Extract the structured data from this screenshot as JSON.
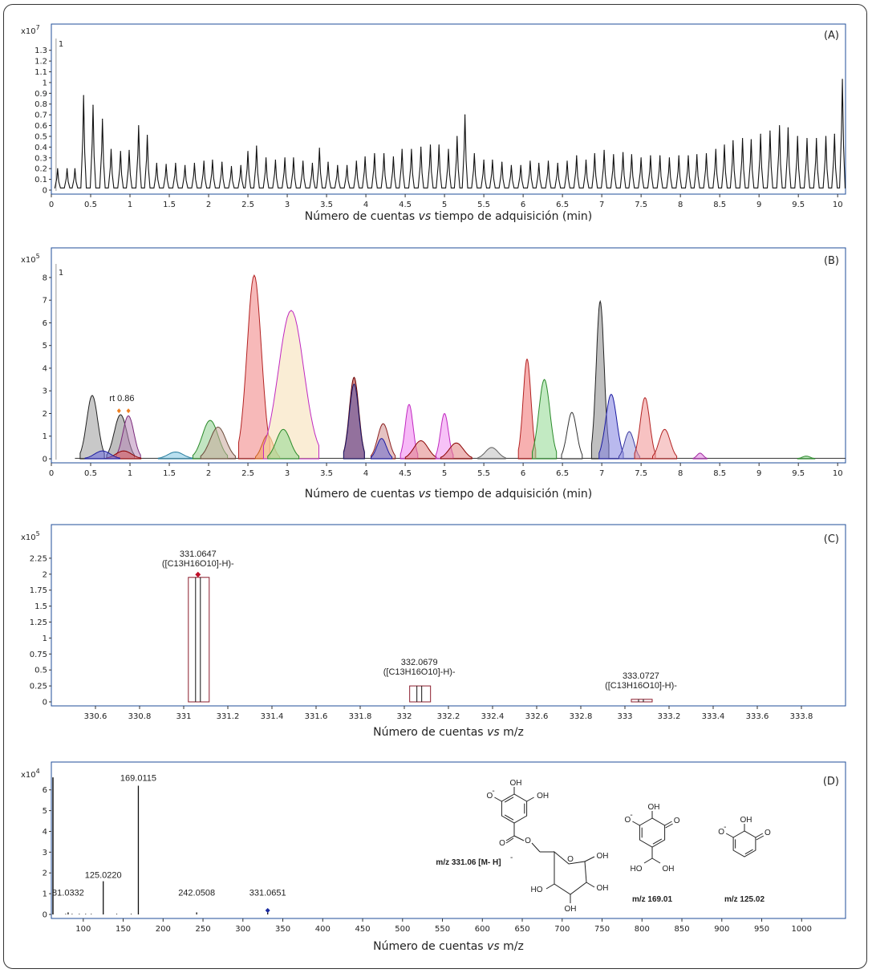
{
  "panel_labels": [
    "(A)",
    "(B)",
    "(C)",
    "(D)"
  ],
  "chart_data": [
    {
      "panel": "(A)",
      "type": "line",
      "y_multiplier": "x10",
      "y_exponent": "7",
      "xlabel_prefix": "Número de cuentas ",
      "xlabel_vs": "vs",
      "xlabel_suffix": " tiempo de adquisición (min)",
      "xlim": [
        0,
        10.1
      ],
      "ylim": [
        0,
        1.35
      ],
      "xticks": [
        "0",
        "0.5",
        "1",
        "1.5",
        "2",
        "2.5",
        "3",
        "3.5",
        "4",
        "4.5",
        "5",
        "5.5",
        "6",
        "6.5",
        "7",
        "7.5",
        "8",
        "8.5",
        "9",
        "9.5",
        "10"
      ],
      "yticks": [
        "0",
        "0.1",
        "0.2",
        "0.3",
        "0.4",
        "0.5",
        "0.6",
        "0.7",
        "0.8",
        "0.9",
        "1",
        "1.1",
        "1.2",
        "1.3"
      ],
      "segment_marker": "1",
      "peaks": [
        [
          0.08,
          0.2
        ],
        [
          0.2,
          0.2
        ],
        [
          0.3,
          0.2
        ],
        [
          0.41,
          0.88
        ],
        [
          0.53,
          0.79
        ],
        [
          0.65,
          0.66
        ],
        [
          0.76,
          0.38
        ],
        [
          0.88,
          0.36
        ],
        [
          0.99,
          0.37
        ],
        [
          1.11,
          0.6
        ],
        [
          1.22,
          0.51
        ],
        [
          1.34,
          0.25
        ],
        [
          1.46,
          0.24
        ],
        [
          1.58,
          0.25
        ],
        [
          1.7,
          0.23
        ],
        [
          1.82,
          0.25
        ],
        [
          1.94,
          0.27
        ],
        [
          2.05,
          0.28
        ],
        [
          2.17,
          0.26
        ],
        [
          2.29,
          0.22
        ],
        [
          2.41,
          0.23
        ],
        [
          2.5,
          0.36
        ],
        [
          2.61,
          0.41
        ],
        [
          2.73,
          0.3
        ],
        [
          2.85,
          0.28
        ],
        [
          2.97,
          0.3
        ],
        [
          3.08,
          0.3
        ],
        [
          3.2,
          0.27
        ],
        [
          3.32,
          0.25
        ],
        [
          3.41,
          0.39
        ],
        [
          3.52,
          0.26
        ],
        [
          3.64,
          0.23
        ],
        [
          3.76,
          0.23
        ],
        [
          3.88,
          0.27
        ],
        [
          3.99,
          0.31
        ],
        [
          4.11,
          0.34
        ],
        [
          4.23,
          0.34
        ],
        [
          4.35,
          0.31
        ],
        [
          4.46,
          0.38
        ],
        [
          4.58,
          0.38
        ],
        [
          4.7,
          0.4
        ],
        [
          4.82,
          0.42
        ],
        [
          4.93,
          0.42
        ],
        [
          5.05,
          0.38
        ],
        [
          5.16,
          0.5
        ],
        [
          5.26,
          0.7
        ],
        [
          5.38,
          0.34
        ],
        [
          5.5,
          0.28
        ],
        [
          5.61,
          0.28
        ],
        [
          5.73,
          0.26
        ],
        [
          5.85,
          0.23
        ],
        [
          5.97,
          0.23
        ],
        [
          6.09,
          0.27
        ],
        [
          6.2,
          0.25
        ],
        [
          6.32,
          0.27
        ],
        [
          6.44,
          0.25
        ],
        [
          6.56,
          0.27
        ],
        [
          6.68,
          0.32
        ],
        [
          6.8,
          0.28
        ],
        [
          6.91,
          0.34
        ],
        [
          7.03,
          0.37
        ],
        [
          7.15,
          0.33
        ],
        [
          7.27,
          0.35
        ],
        [
          7.38,
          0.33
        ],
        [
          7.5,
          0.3
        ],
        [
          7.62,
          0.32
        ],
        [
          7.74,
          0.32
        ],
        [
          7.86,
          0.3
        ],
        [
          7.98,
          0.32
        ],
        [
          8.1,
          0.32
        ],
        [
          8.21,
          0.33
        ],
        [
          8.33,
          0.34
        ],
        [
          8.45,
          0.38
        ],
        [
          8.56,
          0.42
        ],
        [
          8.67,
          0.46
        ],
        [
          8.79,
          0.48
        ],
        [
          8.9,
          0.47
        ],
        [
          9.02,
          0.52
        ],
        [
          9.14,
          0.55
        ],
        [
          9.26,
          0.6
        ],
        [
          9.37,
          0.58
        ],
        [
          9.49,
          0.5
        ],
        [
          9.61,
          0.48
        ],
        [
          9.73,
          0.48
        ],
        [
          9.85,
          0.5
        ],
        [
          9.96,
          0.52
        ],
        [
          10.06,
          1.03
        ]
      ]
    },
    {
      "panel": "(B)",
      "type": "area",
      "y_multiplier": "x10",
      "y_exponent": "5",
      "xlabel_prefix": "Número de cuentas ",
      "xlabel_vs": "vs",
      "xlabel_suffix": " tiempo de adquisición (min)",
      "xlim": [
        0,
        10.1
      ],
      "ylim": [
        0,
        8.6
      ],
      "xticks": [
        "0",
        "0.5",
        "1",
        "1.5",
        "2",
        "2.5",
        "3",
        "3.5",
        "4",
        "4.5",
        "5",
        "5.5",
        "6",
        "6.5",
        "7",
        "7.5",
        "8",
        "8.5",
        "9",
        "9.5",
        "10"
      ],
      "yticks": [
        "0",
        "1",
        "2",
        "3",
        "4",
        "5",
        "6",
        "7",
        "8"
      ],
      "segment_marker": "1",
      "annotation": "rt 0.86",
      "annotation_x": 0.86,
      "peaks": [
        {
          "c": 0.52,
          "h": 2.8,
          "w": 0.07,
          "fill": "#9a9a9a",
          "stroke": "#222222"
        },
        {
          "c": 0.88,
          "h": 1.95,
          "w": 0.08,
          "fill": "#8a8a8a",
          "stroke": "#222222"
        },
        {
          "c": 0.98,
          "h": 1.9,
          "w": 0.07,
          "fill": "#b889b8",
          "stroke": "#7a2a7a"
        },
        {
          "c": 0.92,
          "h": 0.35,
          "w": 0.1,
          "fill": "#e06060",
          "stroke": "#8b0000"
        },
        {
          "c": 0.65,
          "h": 0.35,
          "w": 0.1,
          "fill": "#6a6ae0",
          "stroke": "#1a1aa0"
        },
        {
          "c": 1.58,
          "h": 0.3,
          "w": 0.1,
          "fill": "#7fc7e3",
          "stroke": "#2a7fa0"
        },
        {
          "c": 2.02,
          "h": 1.7,
          "w": 0.1,
          "fill": "#90d090",
          "stroke": "#2a8a2a"
        },
        {
          "c": 2.12,
          "h": 1.4,
          "w": 0.1,
          "fill": "#c9a89a",
          "stroke": "#6a4a3a"
        },
        {
          "c": 2.58,
          "h": 8.1,
          "w": 0.09,
          "fill": "#f08080",
          "stroke": "#b22222"
        },
        {
          "c": 2.75,
          "h": 1.05,
          "w": 0.07,
          "fill": "#f5a060",
          "stroke": "#c86020"
        },
        {
          "c": 3.05,
          "h": 6.55,
          "w": 0.16,
          "fill": "#f5deb3",
          "stroke": "#c028c0"
        },
        {
          "c": 2.95,
          "h": 1.3,
          "w": 0.09,
          "fill": "#90d890",
          "stroke": "#2a8a2a"
        },
        {
          "c": 3.85,
          "h": 3.6,
          "w": 0.06,
          "fill": "#aa2020",
          "stroke": "#6a0000"
        },
        {
          "c": 3.85,
          "h": 3.3,
          "w": 0.06,
          "fill": "#6060b0",
          "stroke": "#1a1a6a"
        },
        {
          "c": 4.22,
          "h": 1.55,
          "w": 0.07,
          "fill": "#d09090",
          "stroke": "#8b2020"
        },
        {
          "c": 4.2,
          "h": 0.9,
          "w": 0.06,
          "fill": "#6a6ad0",
          "stroke": "#1a1aa0"
        },
        {
          "c": 4.55,
          "h": 2.4,
          "w": 0.05,
          "fill": "#f080f0",
          "stroke": "#c028c0"
        },
        {
          "c": 4.7,
          "h": 0.8,
          "w": 0.09,
          "fill": "#e08080",
          "stroke": "#8b0000"
        },
        {
          "c": 5.0,
          "h": 2.0,
          "w": 0.05,
          "fill": "#f090f0",
          "stroke": "#c028c0"
        },
        {
          "c": 5.15,
          "h": 0.7,
          "w": 0.09,
          "fill": "#e08080",
          "stroke": "#8b0000"
        },
        {
          "c": 5.6,
          "h": 0.5,
          "w": 0.08,
          "fill": "#c0c0c0",
          "stroke": "#606060"
        },
        {
          "c": 6.05,
          "h": 4.4,
          "w": 0.05,
          "fill": "#f07070",
          "stroke": "#b22222"
        },
        {
          "c": 6.27,
          "h": 3.5,
          "w": 0.07,
          "fill": "#90d890",
          "stroke": "#2a8a2a"
        },
        {
          "c": 6.62,
          "h": 2.05,
          "w": 0.06,
          "fill": "#ffffff",
          "stroke": "#333333"
        },
        {
          "c": 6.98,
          "h": 6.95,
          "w": 0.05,
          "fill": "#8a8a8a",
          "stroke": "#222222"
        },
        {
          "c": 7.12,
          "h": 2.85,
          "w": 0.07,
          "fill": "#8080e0",
          "stroke": "#1a1aa0"
        },
        {
          "c": 7.35,
          "h": 1.2,
          "w": 0.06,
          "fill": "#a0a0e0",
          "stroke": "#3a3aa0"
        },
        {
          "c": 7.55,
          "h": 2.7,
          "w": 0.06,
          "fill": "#f09090",
          "stroke": "#b22222"
        },
        {
          "c": 7.8,
          "h": 1.3,
          "w": 0.07,
          "fill": "#f0a0a0",
          "stroke": "#b22222"
        },
        {
          "c": 8.25,
          "h": 0.25,
          "w": 0.04,
          "fill": "#e080e0",
          "stroke": "#a028a0"
        },
        {
          "c": 9.6,
          "h": 0.12,
          "w": 0.05,
          "fill": "#90d890",
          "stroke": "#2a8a2a"
        }
      ]
    },
    {
      "panel": "(C)",
      "type": "bar",
      "y_multiplier": "x10",
      "y_exponent": "5",
      "xlabel_prefix": "Número de cuentas ",
      "xlabel_vs": "vs",
      "xlabel_suffix": " m/z",
      "xlim": [
        330.4,
        334.0
      ],
      "ylim": [
        0,
        2.45
      ],
      "xticks": [
        "330.6",
        "330.8",
        "331",
        "331.2",
        "331.4",
        "331.6",
        "331.8",
        "332",
        "332.2",
        "332.4",
        "332.6",
        "332.8",
        "333",
        "333.2",
        "333.4",
        "333.6",
        "333.8"
      ],
      "yticks": [
        "0",
        "0.25",
        "0.5",
        "0.75",
        "1",
        "1.25",
        "1.5",
        "1.75",
        "2",
        "2.25"
      ],
      "peaks": [
        {
          "mz": 331.0647,
          "y": 1.95,
          "label": "331.0647",
          "formula": "([C13H16O10]-H)-"
        },
        {
          "mz": 332.0679,
          "y": 0.25,
          "label": "332.0679",
          "formula": "([C13H16O10]-H)-"
        },
        {
          "mz": 333.0727,
          "y": 0.04,
          "label": "333.0727",
          "formula": "([C13H16O10]-H)-"
        }
      ]
    },
    {
      "panel": "(D)",
      "type": "bar",
      "y_multiplier": "x10",
      "y_exponent": "4",
      "xlabel_prefix": "Número de cuentas ",
      "xlabel_vs": "vs",
      "xlabel_suffix": " m/z",
      "xlim": [
        60,
        1055
      ],
      "ylim": [
        0,
        6.8
      ],
      "xticks": [
        "100",
        "150",
        "200",
        "250",
        "300",
        "350",
        "400",
        "450",
        "500",
        "550",
        "600",
        "650",
        "700",
        "750",
        "800",
        "850",
        "900",
        "950",
        "1000"
      ],
      "yticks": [
        "0",
        "1",
        "2",
        "3",
        "4",
        "5",
        "6"
      ],
      "peaks": [
        {
          "mz": 81.0332,
          "y": 0.1,
          "label": "81.0332"
        },
        {
          "mz": 125.022,
          "y": 1.6,
          "label": "125.0220"
        },
        {
          "mz": 169.0115,
          "y": 6.2,
          "label": "169.0115"
        },
        {
          "mz": 242.0508,
          "y": 0.1,
          "label": "242.0508"
        },
        {
          "mz": 331.0651,
          "y": 0.1,
          "label": "331.0651"
        }
      ],
      "structures": {
        "parent_label": "m/z 331.06 [M- H]",
        "parent_charge": "-",
        "frag1_label": "m/z 169.01",
        "frag2_label": "m/z 125.02",
        "oh": "OH",
        "ho": "HO",
        "o": "O",
        "minus": "-"
      }
    }
  ]
}
